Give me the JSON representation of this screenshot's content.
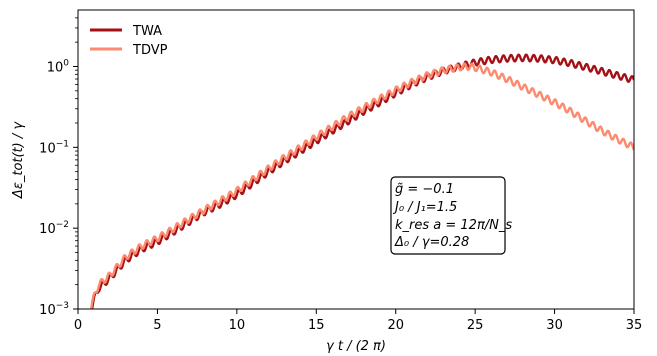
{
  "chart_data": {
    "type": "line",
    "xlabel": "γ t / (2 π)",
    "ylabel": "Δε_tot(t) / γ",
    "xlim": [
      0,
      35
    ],
    "ylim": [
      0.001,
      5
    ],
    "yscale": "log",
    "xticks": [
      0,
      5,
      10,
      15,
      20,
      25,
      30,
      35
    ],
    "xtick_labels": [
      "0",
      "5",
      "10",
      "15",
      "20",
      "25",
      "30",
      "35"
    ],
    "yticks": [
      0.001,
      0.01,
      0.1,
      1
    ],
    "ytick_labels": [
      {
        "base": "10",
        "exp": "−3"
      },
      {
        "base": "10",
        "exp": "−2"
      },
      {
        "base": "10",
        "exp": "−1"
      },
      {
        "base": "10",
        "exp": "0"
      }
    ],
    "grid": false,
    "legend_position": "top-left",
    "series": [
      {
        "name": "TWA",
        "color": "#a50f15",
        "oscillation": 0.04,
        "x": [
          0.8,
          0.9,
          1.0,
          1.3,
          2.0,
          3.0,
          4.0,
          5.0,
          6.0,
          7.0,
          8.0,
          9.0,
          10.0,
          11.0,
          12.0,
          13.0,
          14.0,
          15.0,
          16.0,
          17.0,
          18.0,
          19.0,
          20.0,
          21.0,
          22.0,
          23.0,
          24.0,
          25.0,
          26.0,
          27.0,
          28.0,
          29.0,
          30.0,
          31.0,
          32.0,
          33.0,
          34.0,
          35.0
        ],
        "y": [
          0.001,
          0.0011,
          0.0013,
          0.0018,
          0.0024,
          0.004,
          0.0055,
          0.0068,
          0.009,
          0.012,
          0.016,
          0.02,
          0.026,
          0.036,
          0.05,
          0.068,
          0.09,
          0.12,
          0.16,
          0.21,
          0.28,
          0.36,
          0.47,
          0.6,
          0.74,
          0.88,
          1.0,
          1.12,
          1.21,
          1.26,
          1.28,
          1.26,
          1.2,
          1.1,
          0.98,
          0.87,
          0.77,
          0.68
        ]
      },
      {
        "name": "TDVP",
        "color": "#fb8a6f",
        "oscillation": 0.04,
        "x": [
          0.8,
          0.9,
          1.0,
          1.3,
          2.0,
          3.0,
          4.0,
          5.0,
          6.0,
          7.0,
          8.0,
          9.0,
          10.0,
          11.0,
          12.0,
          13.0,
          14.0,
          15.0,
          16.0,
          17.0,
          18.0,
          19.0,
          20.0,
          21.0,
          22.0,
          23.0,
          24.0,
          24.5,
          25.0,
          26.0,
          27.0,
          28.0,
          29.0,
          30.0,
          31.0,
          32.0,
          33.0,
          34.0,
          35.0
        ],
        "y": [
          0.001,
          0.0012,
          0.0014,
          0.002,
          0.0026,
          0.0044,
          0.006,
          0.0075,
          0.0098,
          0.013,
          0.017,
          0.022,
          0.029,
          0.04,
          0.055,
          0.075,
          0.1,
          0.135,
          0.18,
          0.24,
          0.31,
          0.4,
          0.51,
          0.64,
          0.78,
          0.9,
          0.98,
          1.0,
          0.97,
          0.85,
          0.7,
          0.56,
          0.45,
          0.36,
          0.28,
          0.21,
          0.16,
          0.125,
          0.1
        ]
      }
    ],
    "annotation": {
      "lines": [
        "g̃ = −0.1",
        "J₀ / J₁=1.5",
        "k_res a = 12π/N_s",
        "Δ₀ / γ=0.28"
      ]
    }
  }
}
